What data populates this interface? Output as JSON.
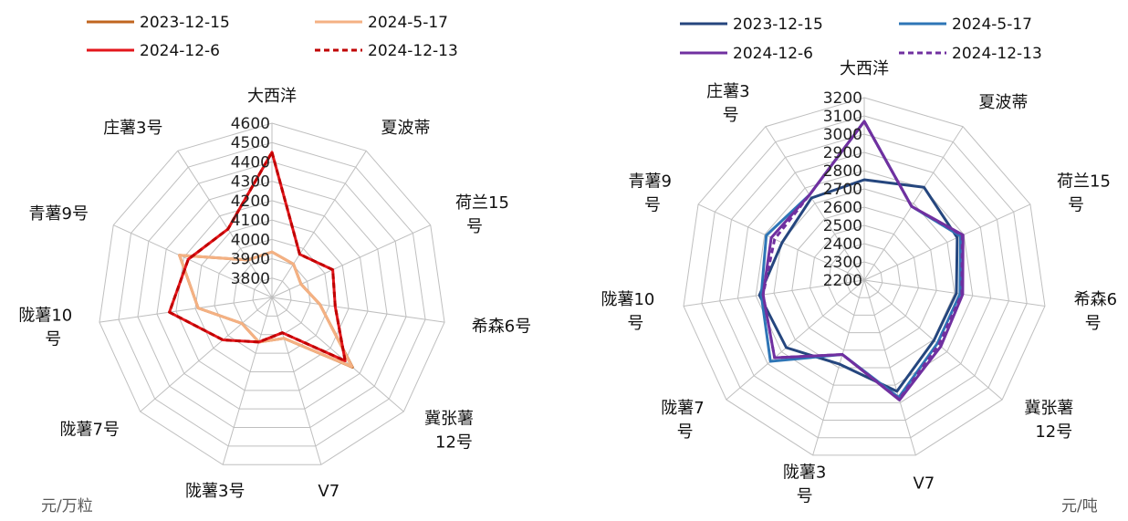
{
  "chart_data": [
    {
      "type": "radar",
      "unit": "元/万粒",
      "rlim": [
        3700,
        4600
      ],
      "ticks": [
        3800,
        3900,
        4000,
        4100,
        4200,
        4300,
        4400,
        4500,
        4600
      ],
      "categories": [
        "大西洋",
        "夏波蒂",
        "荷兰15\n号",
        "希森6号",
        "冀张薯\n12号",
        "V7",
        "陇薯3号",
        "陇薯7号",
        "陇薯10\n号",
        "青薯9号",
        "庄薯3号"
      ],
      "legend_position": "top",
      "series": [
        {
          "name": "2023-12-15",
          "color": "#C0651F",
          "dash": false,
          "values": [
            3935,
            3905,
            3865,
            3950,
            4250,
            3920,
            3940,
            3905,
            4085,
            4225,
            3930
          ]
        },
        {
          "name": "2024-5-17",
          "color": "#F4B183",
          "dash": false,
          "values": [
            3935,
            3905,
            3865,
            3950,
            4245,
            3920,
            3940,
            3905,
            4085,
            4225,
            3930
          ]
        },
        {
          "name": "2024-12-6",
          "color": "#E3161B",
          "dash": false,
          "values": [
            4450,
            3965,
            4045,
            4030,
            4200,
            3890,
            3940,
            4035,
            4235,
            4175,
            4120
          ]
        },
        {
          "name": "2024-12-13",
          "color": "#C00000",
          "dash": true,
          "values": [
            4450,
            3965,
            4045,
            4030,
            4200,
            3890,
            3940,
            4035,
            4235,
            4175,
            4120
          ]
        }
      ]
    },
    {
      "type": "radar",
      "unit": "元/吨",
      "rlim": [
        2200,
        3200
      ],
      "ticks": [
        2200,
        2300,
        2400,
        2500,
        2600,
        2700,
        2800,
        2900,
        3000,
        3100,
        3200
      ],
      "categories": [
        "大西洋",
        "夏波蒂",
        "荷兰15\n号",
        "希森6\n号",
        "冀张薯\n12号",
        "V7",
        "陇薯3\n号",
        "陇薯7\n号",
        "陇薯10\n号",
        "青薯9\n号",
        "庄薯3\n号"
      ],
      "legend_position": "top",
      "series": [
        {
          "name": "2023-12-15",
          "color": "#25467E",
          "dash": false,
          "values": [
            2750,
            2805,
            2760,
            2710,
            2705,
            2835,
            2680,
            2765,
            2780,
            2695,
            2735
          ]
        },
        {
          "name": "2024-5-17",
          "color": "#2E75B6",
          "dash": false,
          "values": [
            3070,
            2680,
            2780,
            2730,
            2730,
            2870,
            2625,
            2880,
            2770,
            2790,
            2755
          ]
        },
        {
          "name": "2024-12-6",
          "color": "#7030A0",
          "dash": false,
          "values": [
            3070,
            2680,
            2795,
            2745,
            2755,
            2885,
            2625,
            2850,
            2760,
            2760,
            2755
          ]
        },
        {
          "name": "2024-12-13",
          "color": "#7030A0",
          "dash": true,
          "values": [
            3070,
            2680,
            2790,
            2740,
            2740,
            2880,
            2625,
            2850,
            2760,
            2740,
            2755
          ]
        }
      ]
    }
  ]
}
